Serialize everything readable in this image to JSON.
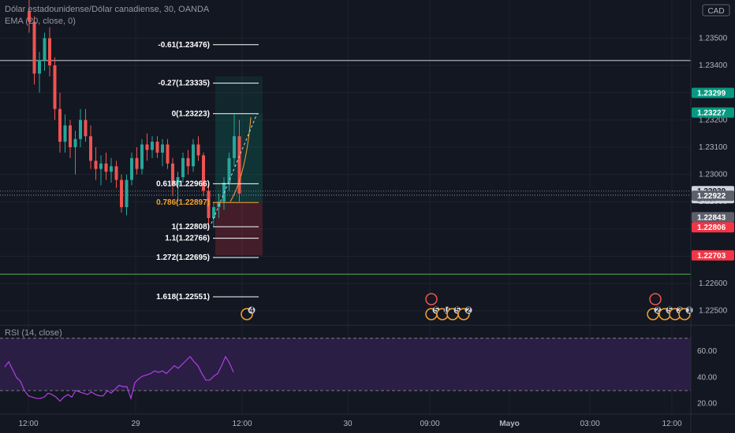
{
  "header": {
    "symbol_line": "Dólar estadounidense/Dólar canadiense, 30, OANDA",
    "ema_line": "EMA (20, close, 0)",
    "rsi_line": "RSI (14, close)"
  },
  "colors": {
    "background": "#131722",
    "up": "#26a69a",
    "down": "#ef5350",
    "rsi_line": "#b33ee6",
    "rsi_band": "#2a1e44",
    "fib_orange": "#f7a22d",
    "support_green": "#4caf50"
  },
  "chart_data": [
    {
      "type": "candlestick",
      "title": "Dólar estadounidense/Dólar canadiense, 30, OANDA",
      "y_axis": {
        "ticks": [
          "1.23500",
          "1.23400",
          "1.23300",
          "1.23200",
          "1.23100",
          "1.23000",
          "1.22900",
          "1.22800",
          "1.22700",
          "1.22600",
          "1.22500"
        ],
        "tick_values": [
          1.235,
          1.234,
          1.233,
          1.232,
          1.231,
          1.23,
          1.229,
          1.228,
          1.227,
          1.226,
          1.225
        ],
        "range": [
          1.2245,
          1.2364
        ],
        "currency": "CAD"
      },
      "x_axis": {
        "ticks": [
          "12:00",
          "29",
          "12:00",
          "30",
          "09:00",
          "Mayo",
          "03:00",
          "12:00"
        ]
      },
      "price_tags": [
        {
          "value": 1.23299,
          "label": "1.23299",
          "color": "#089981"
        },
        {
          "value": 1.23227,
          "label": "1.23227",
          "color": "#089981"
        },
        {
          "value": 1.22939,
          "label": "1.22939",
          "sub": "24:57",
          "color": "#d1d4dc"
        },
        {
          "value": 1.22922,
          "label": "1.22922",
          "color": "#5d606b"
        },
        {
          "value": 1.22843,
          "label": "1.22843",
          "color": "#5d606b"
        },
        {
          "value": 1.22806,
          "label": "1.22806",
          "color": "#f23645"
        },
        {
          "value": 1.22703,
          "label": "1.22703",
          "color": "#f23645"
        }
      ],
      "horizontal_lines": [
        {
          "value": 1.23418,
          "color": "#d1d4dc"
        },
        {
          "value": 1.22634,
          "color": "#4caf50"
        },
        {
          "value": 1.22924,
          "color": "#9598a1"
        }
      ],
      "fib_levels": [
        {
          "ratio": "-0.61",
          "value": 1.23476,
          "label": "-0.61(1.23476)"
        },
        {
          "ratio": "-0.27",
          "value": 1.23335,
          "label": "-0.27(1.23335)"
        },
        {
          "ratio": "0",
          "value": 1.23223,
          "label": "0(1.23223)"
        },
        {
          "ratio": "0.618",
          "value": 1.22966,
          "label": "0.618(1.22966)"
        },
        {
          "ratio": "0.786",
          "value": 1.22897,
          "label": "0.786(1.22897)",
          "color": "#f7a22d"
        },
        {
          "ratio": "1",
          "value": 1.22808,
          "label": "1(1.22808)"
        },
        {
          "ratio": "1.1",
          "value": 1.22766,
          "label": "1.1(1.22766)"
        },
        {
          "ratio": "1.272",
          "value": 1.22695,
          "label": "1.272(1.22695)"
        },
        {
          "ratio": "1.618",
          "value": 1.22551,
          "label": "1.618(1.22551)"
        }
      ],
      "position": {
        "entry": 1.22897,
        "target": 1.23223,
        "stop": 1.22703
      },
      "event_badges": [
        "4",
        "5",
        "10",
        "5",
        "2",
        "2",
        "5",
        "3",
        "1"
      ],
      "candles": [
        {
          "o": 1.236,
          "h": 1.2364,
          "l": 1.2352,
          "c": 1.2356
        },
        {
          "o": 1.2356,
          "h": 1.2358,
          "l": 1.2333,
          "c": 1.2337
        },
        {
          "o": 1.2337,
          "h": 1.2345,
          "l": 1.233,
          "c": 1.2342
        },
        {
          "o": 1.2342,
          "h": 1.2352,
          "l": 1.2338,
          "c": 1.235
        },
        {
          "o": 1.235,
          "h": 1.2354,
          "l": 1.2336,
          "c": 1.234
        },
        {
          "o": 1.234,
          "h": 1.2343,
          "l": 1.232,
          "c": 1.2324
        },
        {
          "o": 1.2324,
          "h": 1.233,
          "l": 1.2308,
          "c": 1.2312
        },
        {
          "o": 1.2312,
          "h": 1.2322,
          "l": 1.2308,
          "c": 1.2318
        },
        {
          "o": 1.2318,
          "h": 1.232,
          "l": 1.2306,
          "c": 1.231
        },
        {
          "o": 1.231,
          "h": 1.2316,
          "l": 1.23,
          "c": 1.2313
        },
        {
          "o": 1.2313,
          "h": 1.2324,
          "l": 1.231,
          "c": 1.232
        },
        {
          "o": 1.232,
          "h": 1.2324,
          "l": 1.2312,
          "c": 1.2314
        },
        {
          "o": 1.2314,
          "h": 1.2318,
          "l": 1.2302,
          "c": 1.2305
        },
        {
          "o": 1.2305,
          "h": 1.231,
          "l": 1.2298,
          "c": 1.2302
        },
        {
          "o": 1.2302,
          "h": 1.2307,
          "l": 1.2296,
          "c": 1.2304
        },
        {
          "o": 1.2304,
          "h": 1.2308,
          "l": 1.2298,
          "c": 1.2301
        },
        {
          "o": 1.2301,
          "h": 1.2306,
          "l": 1.2297,
          "c": 1.2303
        },
        {
          "o": 1.2303,
          "h": 1.2305,
          "l": 1.2295,
          "c": 1.2298
        },
        {
          "o": 1.2298,
          "h": 1.23,
          "l": 1.2286,
          "c": 1.2288
        },
        {
          "o": 1.2288,
          "h": 1.23,
          "l": 1.2285,
          "c": 1.2298
        },
        {
          "o": 1.2298,
          "h": 1.2308,
          "l": 1.2296,
          "c": 1.2306
        },
        {
          "o": 1.2306,
          "h": 1.231,
          "l": 1.23,
          "c": 1.2302
        },
        {
          "o": 1.2302,
          "h": 1.2313,
          "l": 1.23,
          "c": 1.2311
        },
        {
          "o": 1.2311,
          "h": 1.2315,
          "l": 1.2305,
          "c": 1.2309
        },
        {
          "o": 1.2309,
          "h": 1.2314,
          "l": 1.2306,
          "c": 1.2312
        },
        {
          "o": 1.2312,
          "h": 1.2314,
          "l": 1.2306,
          "c": 1.2308
        },
        {
          "o": 1.2308,
          "h": 1.2313,
          "l": 1.2303,
          "c": 1.2311
        },
        {
          "o": 1.2311,
          "h": 1.2313,
          "l": 1.2302,
          "c": 1.2304
        },
        {
          "o": 1.2304,
          "h": 1.2306,
          "l": 1.2292,
          "c": 1.2296
        },
        {
          "o": 1.2296,
          "h": 1.2301,
          "l": 1.229,
          "c": 1.2299
        },
        {
          "o": 1.2299,
          "h": 1.2308,
          "l": 1.2297,
          "c": 1.2306
        },
        {
          "o": 1.2306,
          "h": 1.2309,
          "l": 1.23,
          "c": 1.2303
        },
        {
          "o": 1.2303,
          "h": 1.2313,
          "l": 1.2301,
          "c": 1.2311
        },
        {
          "o": 1.2311,
          "h": 1.2314,
          "l": 1.2305,
          "c": 1.2307
        },
        {
          "o": 1.2307,
          "h": 1.2308,
          "l": 1.2292,
          "c": 1.2294
        },
        {
          "o": 1.2294,
          "h": 1.2296,
          "l": 1.2281,
          "c": 1.2284
        },
        {
          "o": 1.2284,
          "h": 1.229,
          "l": 1.2281,
          "c": 1.2288
        },
        {
          "o": 1.2288,
          "h": 1.2293,
          "l": 1.2284,
          "c": 1.229
        },
        {
          "o": 1.229,
          "h": 1.2299,
          "l": 1.2287,
          "c": 1.2297
        },
        {
          "o": 1.2297,
          "h": 1.2308,
          "l": 1.2294,
          "c": 1.2306
        },
        {
          "o": 1.2306,
          "h": 1.2322,
          "l": 1.2303,
          "c": 1.2314
        },
        {
          "o": 1.2314,
          "h": 1.232,
          "l": 1.229,
          "c": 1.2293
        }
      ]
    },
    {
      "type": "line",
      "title": "RSI (14, close)",
      "y_axis": {
        "ticks": [
          "60.00",
          "40.00",
          "20.00"
        ],
        "tick_values": [
          60,
          40,
          20
        ],
        "range": [
          12,
          80
        ],
        "bands": [
          70,
          30
        ]
      },
      "values": [
        48,
        52,
        46,
        40,
        37,
        30,
        26,
        25,
        24,
        24,
        25,
        28,
        27,
        25,
        22,
        25,
        27,
        25,
        30,
        29,
        28,
        27,
        29,
        27,
        26,
        26,
        30,
        28,
        31,
        34,
        33,
        33,
        24,
        36,
        39,
        41,
        42,
        43,
        45,
        44,
        45,
        43,
        46,
        49,
        47,
        50,
        53,
        56,
        52,
        49,
        43,
        38,
        38,
        41,
        43,
        49,
        56,
        51,
        44
      ]
    }
  ]
}
